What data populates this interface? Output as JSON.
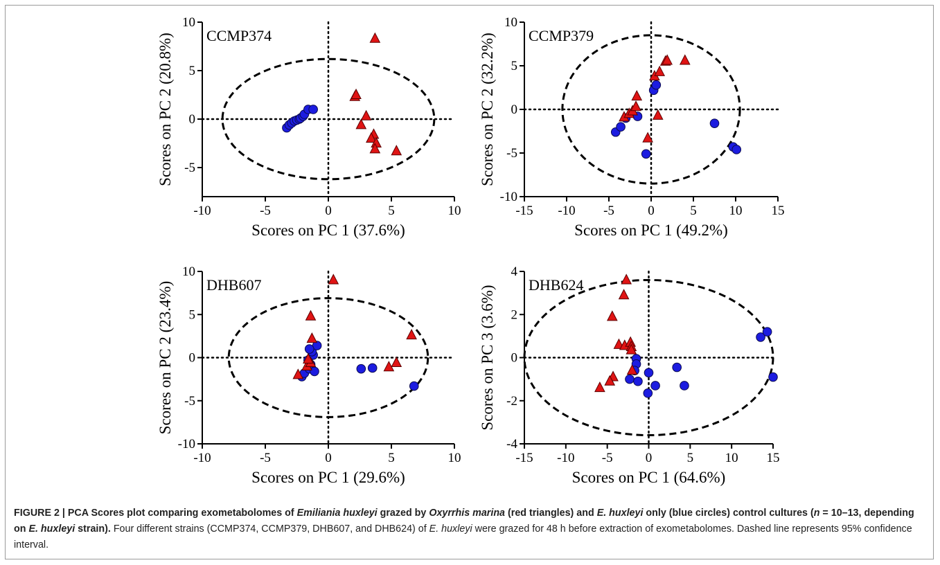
{
  "chart_data": [
    {
      "type": "scatter",
      "strain_label": "CCMP374",
      "xlabel": "Scores on PC 1 (37.6%)",
      "ylabel": "Scores on PC 2 (20.8%)",
      "xlim": [
        -10,
        10
      ],
      "ylim": [
        -8,
        10
      ],
      "xticks": [
        -10,
        -5,
        0,
        5,
        10
      ],
      "yticks": [
        -5,
        0,
        5,
        10
      ],
      "ellipse": {
        "cx": 0,
        "cy": 0,
        "rx": 8.4,
        "ry": 6.2
      },
      "series": [
        {
          "color": "#1c1ce0",
          "marker": "circle",
          "points": [
            [
              -3.3,
              -0.9
            ],
            [
              -3.1,
              -0.6
            ],
            [
              -2.9,
              -0.4
            ],
            [
              -2.7,
              -0.2
            ],
            [
              -2.5,
              -0.1
            ],
            [
              -2.3,
              0.0
            ],
            [
              -2.2,
              0.1
            ],
            [
              -2.0,
              0.3
            ],
            [
              -1.9,
              0.5
            ],
            [
              -1.6,
              1.0
            ],
            [
              -1.2,
              1.0
            ]
          ]
        },
        {
          "color": "#e01414",
          "marker": "triangle",
          "points": [
            [
              3.7,
              8.3
            ],
            [
              2.1,
              2.3
            ],
            [
              2.2,
              2.5
            ],
            [
              3.0,
              0.3
            ],
            [
              2.6,
              -0.6
            ],
            [
              3.6,
              -1.6
            ],
            [
              3.4,
              -2.0
            ],
            [
              3.8,
              -2.5
            ],
            [
              3.7,
              -3.1
            ],
            [
              5.4,
              -3.3
            ]
          ]
        }
      ]
    },
    {
      "type": "scatter",
      "strain_label": "CCMP379",
      "xlabel": "Scores on PC 1 (49.2%)",
      "ylabel": "Scores on PC 2 (32.2%)",
      "xlim": [
        -15,
        15
      ],
      "ylim": [
        -10,
        10
      ],
      "xticks": [
        -15,
        -10,
        -5,
        0,
        5,
        10,
        15
      ],
      "yticks": [
        -10,
        -5,
        0,
        5,
        10
      ],
      "ellipse": {
        "cx": 0,
        "cy": 0,
        "rx": 10.5,
        "ry": 8.5
      },
      "series": [
        {
          "color": "#1c1ce0",
          "marker": "circle",
          "points": [
            [
              -4.2,
              -2.6
            ],
            [
              -3.6,
              -2.0
            ],
            [
              -3.0,
              -1.0
            ],
            [
              -1.6,
              -0.8
            ],
            [
              -0.6,
              -5.1
            ],
            [
              0.3,
              2.2
            ],
            [
              0.6,
              2.8
            ],
            [
              7.5,
              -1.6
            ],
            [
              9.7,
              -4.3
            ],
            [
              10.1,
              -4.6
            ]
          ]
        },
        {
          "color": "#e01414",
          "marker": "triangle",
          "points": [
            [
              -3.2,
              -0.9
            ],
            [
              -2.6,
              -0.5
            ],
            [
              -2.2,
              -0.2
            ],
            [
              -1.8,
              0.3
            ],
            [
              -1.7,
              1.5
            ],
            [
              0.4,
              3.8
            ],
            [
              1.0,
              4.3
            ],
            [
              1.7,
              5.5
            ],
            [
              1.9,
              5.6
            ],
            [
              4.0,
              5.6
            ],
            [
              0.8,
              -0.7
            ],
            [
              -0.4,
              -3.3
            ]
          ]
        }
      ]
    },
    {
      "type": "scatter",
      "strain_label": "DHB607",
      "xlabel": "Scores on PC 1 (29.6%)",
      "ylabel": "Scores on PC 2 (23.4%)",
      "xlim": [
        -10,
        10
      ],
      "ylim": [
        -10,
        10
      ],
      "xticks": [
        -10,
        -5,
        0,
        5,
        10
      ],
      "yticks": [
        -10,
        -5,
        0,
        5,
        10
      ],
      "ellipse": {
        "cx": 0,
        "cy": 0,
        "rx": 7.9,
        "ry": 6.9
      },
      "series": [
        {
          "color": "#1c1ce0",
          "marker": "circle",
          "points": [
            [
              -2.1,
              -2.2
            ],
            [
              -1.9,
              -1.8
            ],
            [
              -1.5,
              -1.3
            ],
            [
              -1.4,
              -0.8
            ],
            [
              -1.6,
              -0.3
            ],
            [
              -1.2,
              0.3
            ],
            [
              -1.3,
              0.7
            ],
            [
              -0.9,
              1.4
            ],
            [
              -1.5,
              1.0
            ],
            [
              -1.1,
              -1.6
            ],
            [
              2.6,
              -1.3
            ],
            [
              3.5,
              -1.2
            ],
            [
              6.8,
              -3.3
            ]
          ]
        },
        {
          "color": "#e01414",
          "marker": "triangle",
          "points": [
            [
              -2.4,
              -2.0
            ],
            [
              -1.7,
              -1.0
            ],
            [
              -1.4,
              -0.6
            ],
            [
              -1.6,
              -0.2
            ],
            [
              -1.3,
              2.2
            ],
            [
              -1.4,
              4.8
            ],
            [
              0.4,
              9.0
            ],
            [
              4.8,
              -1.1
            ],
            [
              5.4,
              -0.6
            ],
            [
              6.6,
              2.6
            ]
          ]
        }
      ]
    },
    {
      "type": "scatter",
      "strain_label": "DHB624",
      "xlabel": "Scores on PC 1 (64.6%)",
      "ylabel": "Scores on PC 3 (3.6%)",
      "xlim": [
        -15,
        15
      ],
      "ylim": [
        -4,
        4
      ],
      "xticks": [
        -15,
        -10,
        -5,
        0,
        5,
        10,
        15
      ],
      "yticks": [
        -4,
        -2,
        0,
        2,
        4
      ],
      "ellipse": {
        "cx": 0,
        "cy": 0,
        "rx": 15,
        "ry": 3.6
      },
      "series": [
        {
          "color": "#1c1ce0",
          "marker": "circle",
          "points": [
            [
              -1.5,
              -0.05
            ],
            [
              -1.5,
              -0.3
            ],
            [
              -1.7,
              -0.6
            ],
            [
              -2.3,
              -1.0
            ],
            [
              -1.3,
              -1.1
            ],
            [
              0.0,
              -0.7
            ],
            [
              0.8,
              -1.3
            ],
            [
              -0.1,
              -1.65
            ],
            [
              3.4,
              -0.45
            ],
            [
              4.3,
              -1.3
            ],
            [
              13.5,
              0.95
            ],
            [
              14.3,
              1.2
            ],
            [
              15.0,
              -0.9
            ]
          ]
        },
        {
          "color": "#e01414",
          "marker": "triangle",
          "points": [
            [
              -2.7,
              3.6
            ],
            [
              -3.0,
              2.9
            ],
            [
              -4.4,
              1.9
            ],
            [
              -3.6,
              0.6
            ],
            [
              -2.9,
              0.55
            ],
            [
              -2.2,
              0.7
            ],
            [
              -2.1,
              0.5
            ],
            [
              -2.1,
              0.35
            ],
            [
              -2.0,
              -0.6
            ],
            [
              -4.3,
              -0.9
            ],
            [
              -4.7,
              -1.1
            ],
            [
              -5.9,
              -1.4
            ]
          ]
        }
      ]
    }
  ],
  "caption": {
    "p1": "FIGURE 2 | PCA Scores plot comparing exometabolomes of ",
    "i1": "Emiliania huxleyi",
    "p2": " grazed by ",
    "i2": "Oxyrrhis marina",
    "p3": " (red triangles) and ",
    "i3": "E. huxleyi",
    "p4": " only (blue circles) control cultures (",
    "i4": "n",
    "p5": " = 10–13, depending on ",
    "i5": "E. huxleyi",
    "p6": " strain).",
    "n1": " Four different strains (CCMP374, CCMP379, DHB607, and DHB624) of ",
    "i6": "E. huxleyi",
    "n2": " were grazed for 48 h before extraction of exometabolomes. Dashed line represents 95% confidence interval."
  }
}
